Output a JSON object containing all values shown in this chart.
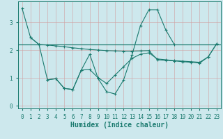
{
  "xlabel": "Humidex (Indice chaleur)",
  "bg_color": "#cde8ed",
  "grid_color": "#b0d8e0",
  "line_color": "#1a7a6e",
  "xlim": [
    -0.5,
    23.5
  ],
  "ylim": [
    -0.1,
    3.75
  ],
  "xticks": [
    0,
    1,
    2,
    3,
    4,
    5,
    6,
    7,
    8,
    9,
    10,
    11,
    12,
    13,
    14,
    15,
    16,
    17,
    18,
    19,
    20,
    21,
    22,
    23
  ],
  "yticks": [
    0,
    1,
    2,
    3
  ],
  "hline_y": 2.2,
  "series1_x": [
    0,
    1,
    2,
    3,
    4,
    5,
    6,
    7,
    8,
    9,
    10,
    11,
    12,
    13,
    14,
    15,
    16,
    17,
    18,
    19,
    20,
    21,
    22,
    23
  ],
  "series1_y": [
    3.5,
    2.45,
    2.2,
    2.18,
    2.15,
    2.12,
    2.08,
    2.05,
    2.02,
    2.0,
    1.98,
    1.97,
    1.96,
    1.96,
    1.97,
    1.98,
    1.65,
    1.63,
    1.61,
    1.58,
    1.56,
    1.53,
    1.75,
    2.22
  ],
  "series2_x": [
    1,
    2,
    3,
    4,
    5,
    6,
    7,
    8,
    9,
    10,
    11,
    12,
    13,
    14,
    15,
    16,
    17,
    18
  ],
  "series2_y": [
    2.45,
    2.2,
    0.93,
    0.97,
    0.62,
    0.58,
    1.28,
    1.85,
    0.97,
    0.5,
    0.42,
    0.92,
    1.82,
    2.88,
    3.45,
    3.45,
    2.72,
    2.2
  ],
  "series3_x": [
    3,
    4,
    5,
    6,
    7,
    8,
    9,
    10,
    11,
    12,
    13,
    14,
    15,
    16,
    17,
    18,
    19,
    20,
    21,
    22,
    23
  ],
  "series3_y": [
    0.93,
    0.97,
    0.62,
    0.58,
    1.28,
    1.3,
    1.0,
    0.8,
    1.1,
    1.4,
    1.7,
    1.85,
    1.9,
    1.68,
    1.65,
    1.62,
    1.6,
    1.58,
    1.56,
    1.75,
    2.22
  ],
  "font_size_tick": 5.5,
  "font_size_label": 7.0
}
